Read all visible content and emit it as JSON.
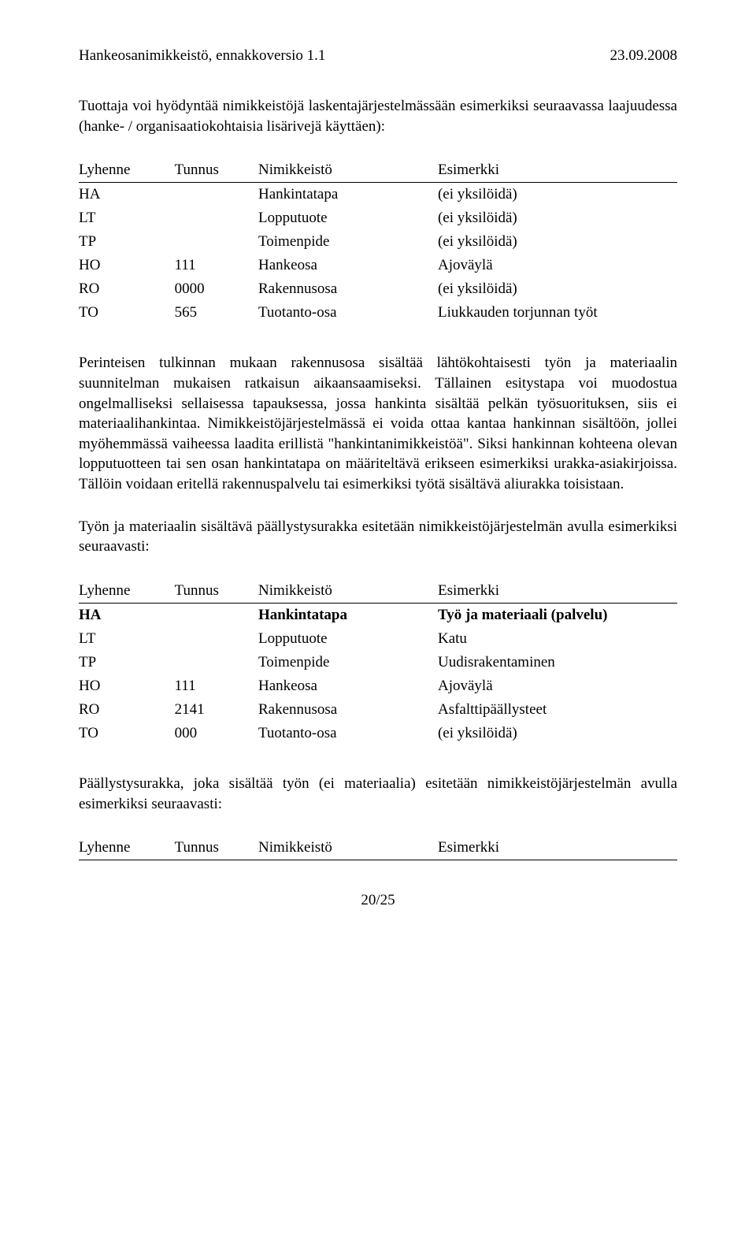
{
  "header": {
    "left": "Hankeosanimikkeistö, ennakkoversio 1.1",
    "right": "23.09.2008"
  },
  "para1": "Tuottaja voi hyödyntää nimikkeistöjä laskentajärjestelmässään esimerkiksi seuraavassa laajuudessa (hanke- / organisaatiokohtaisia lisärivejä käyttäen):",
  "table1": {
    "headers": {
      "c1": "Lyhenne",
      "c2": "Tunnus",
      "c3": "Nimikkeistö",
      "c4": "Esimerkki"
    },
    "rows": [
      {
        "c1": "HA",
        "c2": "",
        "c3": "Hankintatapa",
        "c4": "(ei yksilöidä)"
      },
      {
        "c1": "LT",
        "c2": "",
        "c3": "Lopputuote",
        "c4": "(ei yksilöidä)"
      },
      {
        "c1": "TP",
        "c2": "",
        "c3": "Toimenpide",
        "c4": "(ei yksilöidä)"
      },
      {
        "c1": "HO",
        "c2": "111",
        "c3": "Hankeosa",
        "c4": "Ajoväylä"
      },
      {
        "c1": "RO",
        "c2": "0000",
        "c3": "Rakennusosa",
        "c4": "(ei yksilöidä)"
      },
      {
        "c1": "TO",
        "c2": "565",
        "c3": "Tuotanto-osa",
        "c4": "Liukkauden torjunnan työt"
      }
    ]
  },
  "para2": "Perinteisen tulkinnan mukaan rakennusosa sisältää lähtökohtaisesti työn ja materiaalin suunnitelman mukaisen ratkaisun aikaansaamiseksi. Tällainen esitystapa voi muodostua ongelmalliseksi sellaisessa tapauksessa, jossa hankinta sisältää pelkän työsuorituksen, siis ei materiaalihankintaa. Nimikkeistöjärjestelmässä ei voida ottaa kantaa hankinnan sisältöön, jollei myöhemmässä vaiheessa laadita erillistä \"hankintanimikkeistöä\". Siksi hankinnan kohteena olevan lopputuotteen tai sen osan hankintatapa on määriteltävä erikseen esimerkiksi urakka-asiakirjoissa. Tällöin voidaan eritellä rakennuspalvelu tai esimerkiksi työtä sisältävä aliurakka toisistaan.",
  "para3": "Työn ja materiaalin sisältävä päällystysurakka esitetään nimikkeistöjärjestelmän avulla esimerkiksi seuraavasti:",
  "table2": {
    "headers": {
      "c1": "Lyhenne",
      "c2": "Tunnus",
      "c3": "Nimikkeistö",
      "c4": "Esimerkki"
    },
    "rows": [
      {
        "c1": "HA",
        "c2": "",
        "c3": "Hankintatapa",
        "c4": "Työ ja materiaali (palvelu)",
        "bold": true
      },
      {
        "c1": "LT",
        "c2": "",
        "c3": "Lopputuote",
        "c4": "Katu"
      },
      {
        "c1": "TP",
        "c2": "",
        "c3": "Toimenpide",
        "c4": "Uudisrakentaminen"
      },
      {
        "c1": "HO",
        "c2": "111",
        "c3": "Hankeosa",
        "c4": "Ajoväylä"
      },
      {
        "c1": "RO",
        "c2": "2141",
        "c3": "Rakennusosa",
        "c4": "Asfalttipäällysteet"
      },
      {
        "c1": "TO",
        "c2": "000",
        "c3": "Tuotanto-osa",
        "c4": "(ei yksilöidä)"
      }
    ]
  },
  "para4": "Päällystysurakka, joka sisältää työn (ei materiaalia) esitetään nimikkeistöjärjestelmän avulla esimerkiksi seuraavasti:",
  "table3": {
    "headers": {
      "c1": "Lyhenne",
      "c2": "Tunnus",
      "c3": "Nimikkeistö",
      "c4": "Esimerkki"
    }
  },
  "pagenum": "20/25"
}
